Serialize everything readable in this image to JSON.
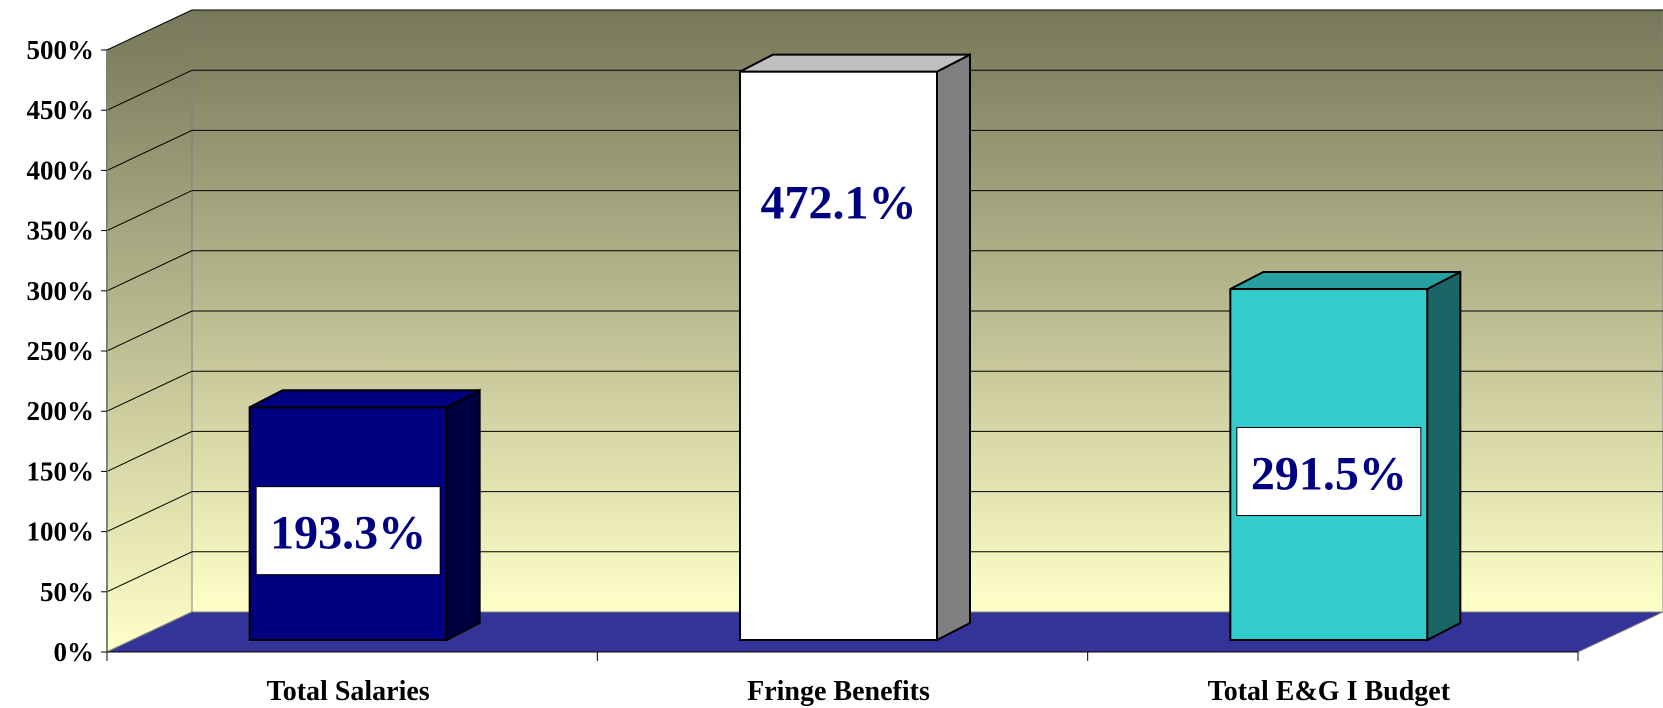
{
  "chart_data": {
    "type": "bar",
    "style": "3d-column",
    "categories": [
      "Total Salaries",
      "Fringe Benefits",
      "Total E&G I Budget"
    ],
    "values": [
      193.3,
      472.1,
      291.5
    ],
    "data_labels": [
      "193.3%",
      "472.1%",
      "291.5%"
    ],
    "bar_colors": [
      "#000080",
      "#ffffff",
      "#33cccc"
    ],
    "bar_side_colors": [
      "#000040",
      "#808080",
      "#1a6666"
    ],
    "bar_top_colors": [
      "#000080",
      "#c0c0c0",
      "#26a0a0"
    ],
    "ylim": [
      0,
      500
    ],
    "yticks": [
      0,
      50,
      100,
      150,
      200,
      250,
      300,
      350,
      400,
      450,
      500
    ],
    "ytick_labels": [
      "0%",
      "50%",
      "100%",
      "150%",
      "200%",
      "250%",
      "300%",
      "350%",
      "400%",
      "450%",
      "500%"
    ],
    "grid": true,
    "legend": false,
    "floor_color": "#333399",
    "wall_gradient": [
      "#77775a",
      "#ffffc8"
    ]
  }
}
